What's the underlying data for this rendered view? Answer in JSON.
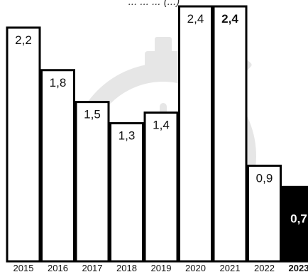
{
  "header": {
    "partial_text": "...                    ...              ...  (...)"
  },
  "chart_data": {
    "type": "bar",
    "title": "",
    "xlabel": "",
    "ylabel": "",
    "categories": [
      "2015",
      "2016",
      "2017",
      "2018",
      "2019",
      "2020",
      "2021",
      "2022",
      "2023"
    ],
    "values": [
      2.2,
      1.8,
      1.5,
      1.3,
      1.4,
      2.4,
      2.4,
      0.9,
      0.7
    ],
    "value_labels": [
      "2,2",
      "1,8",
      "1,5",
      "1,3",
      "1,4",
      "2,4",
      "2,4",
      "0,9",
      "0,7"
    ],
    "highlight": {
      "bold_value_labels": [
        "2021",
        "2023"
      ],
      "bold_tick_labels": [
        "2023"
      ],
      "filled_bar": "2023"
    },
    "ylim": [
      0,
      2.4
    ],
    "grid": false,
    "legend": "none",
    "colors": {
      "bar_fill": "#ffffff",
      "bar_stroke": "#000000",
      "highlight_fill": "#000000",
      "highlight_text": "#ffffff",
      "text": "#111111",
      "watermark": "#e6e6e6"
    },
    "background_watermark": "stopwatch-icon"
  }
}
